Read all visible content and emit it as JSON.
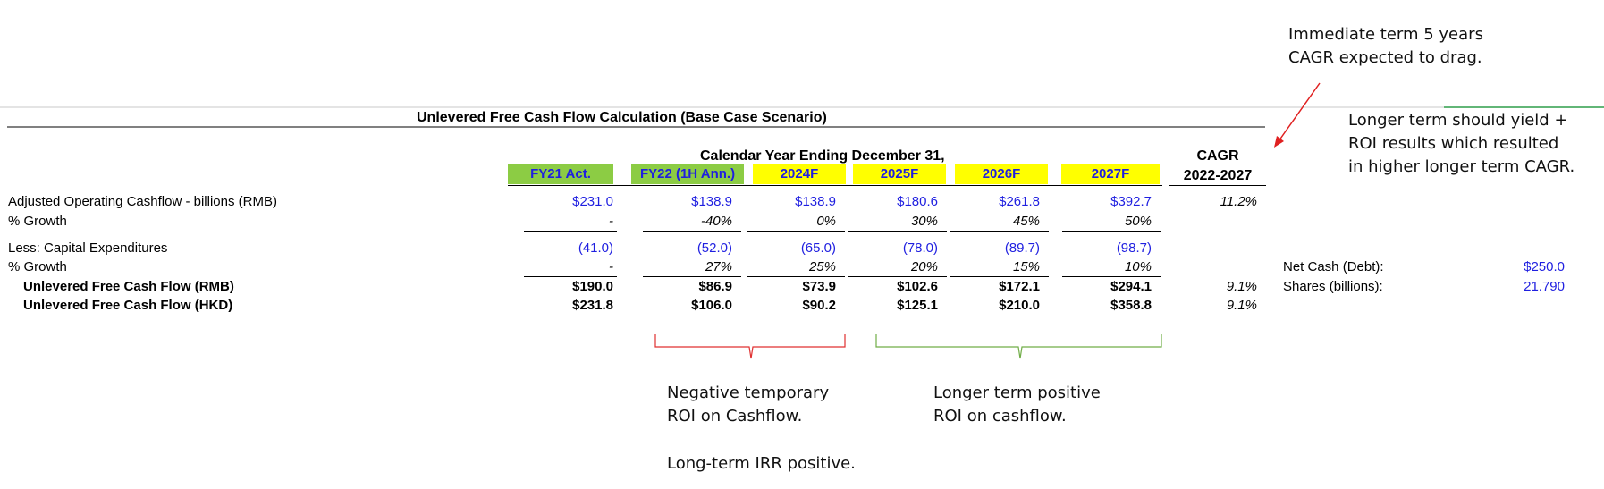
{
  "annotations": {
    "top_right": [
      "Immediate term 5 years",
      "CAGR expected to drag."
    ],
    "right": [
      "Longer term should yield +",
      "ROI results which resulted",
      "in higher longer term CAGR."
    ],
    "negative": [
      "Negative temporary",
      "ROI on Cashflow."
    ],
    "irr": "Long-term IRR positive.",
    "positive": [
      "Longer term positive",
      "ROI on cashflow."
    ]
  },
  "sheet": {
    "title": "Unlevered Free Cash Flow Calculation (Base Case Scenario)",
    "period_header": "Calendar Year Ending December 31,",
    "columns": [
      "FY21 Act.",
      "FY22 (1H Ann.)",
      "2024F",
      "2025F",
      "2026F",
      "2027F"
    ],
    "column_colors": [
      "#8ccc44",
      "#8ccc44",
      "#ffff00",
      "#ffff00",
      "#ffff00",
      "#ffff00"
    ],
    "cagr_header": [
      "CAGR",
      "2022-2027"
    ],
    "rows": {
      "ocf": {
        "label": "Adjusted Operating Cashflow - billions (RMB)",
        "values": [
          "$231.0",
          "$138.9",
          "$138.9",
          "$180.6",
          "$261.8",
          "$392.7"
        ],
        "cagr": "11.2%"
      },
      "ocf_growth": {
        "label": "% Growth",
        "values": [
          "-",
          "-40%",
          "0%",
          "30%",
          "45%",
          "50%"
        ]
      },
      "capex": {
        "label": "Less: Capital Expenditures",
        "values": [
          "(41.0)",
          "(52.0)",
          "(65.0)",
          "(78.0)",
          "(89.7)",
          "(98.7)"
        ]
      },
      "capex_growth": {
        "label": "% Growth",
        "values": [
          "-",
          "27%",
          "25%",
          "20%",
          "15%",
          "10%"
        ]
      },
      "ufcf_rmb": {
        "label": "Unlevered Free Cash Flow (RMB)",
        "values": [
          "$190.0",
          "$86.9",
          "$73.9",
          "$102.6",
          "$172.1",
          "$294.1"
        ],
        "cagr": "9.1%"
      },
      "ufcf_hkd": {
        "label": "Unlevered Free Cash Flow (HKD)",
        "values": [
          "$231.8",
          "$106.0",
          "$90.2",
          "$125.1",
          "$210.0",
          "$358.8"
        ],
        "cagr": "9.1%"
      }
    },
    "side": {
      "net_cash_label": "Net Cash (Debt):",
      "net_cash_value": "$250.0",
      "shares_label": "Shares (billions):",
      "shares_value": "21.790"
    }
  },
  "colors": {
    "arrow": "#e02020",
    "brace_red": "#e03030",
    "brace_green": "#70ad47",
    "blue_text": "#1f1fe0"
  }
}
